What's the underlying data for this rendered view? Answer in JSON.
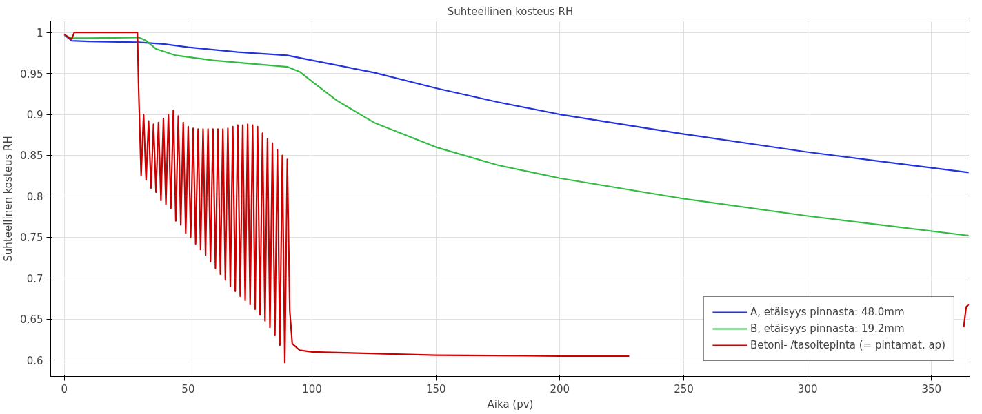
{
  "chart_data": {
    "type": "line",
    "title": "Suhteellinen kosteus RH",
    "xlabel": "Aika (pv)",
    "ylabel": "Suhteellinen kosteus RH",
    "xlim": [
      -5.5,
      365.5
    ],
    "ylim": [
      0.58,
      1.014
    ],
    "xticks": [
      0,
      50,
      100,
      150,
      200,
      250,
      300,
      350
    ],
    "yticks": [
      0.6,
      0.65,
      0.7,
      0.75,
      0.8,
      0.85,
      0.9,
      0.95,
      1
    ],
    "grid": true,
    "legend": "bottom right",
    "marker": "none",
    "line_style": "solid",
    "series": [
      {
        "name": "A, etäisyys pinnasta: 48.0mm",
        "color": "#2233dd",
        "x": [
          0,
          3,
          10,
          30,
          40,
          50,
          70,
          90,
          100,
          125,
          150,
          175,
          200,
          250,
          300,
          365
        ],
        "values": [
          0.997,
          0.99,
          0.989,
          0.988,
          0.986,
          0.982,
          0.976,
          0.972,
          0.966,
          0.951,
          0.932,
          0.915,
          0.9,
          0.876,
          0.854,
          0.829
        ]
      },
      {
        "name": "B, etäisyys pinnasta: 19.2mm",
        "color": "#33bb44",
        "x": [
          0,
          3,
          10,
          30,
          33,
          37,
          45,
          60,
          75,
          90,
          95,
          100,
          110,
          125,
          150,
          175,
          200,
          250,
          300,
          365
        ],
        "values": [
          0.997,
          0.993,
          0.993,
          0.994,
          0.99,
          0.98,
          0.972,
          0.966,
          0.962,
          0.958,
          0.952,
          0.94,
          0.917,
          0.89,
          0.86,
          0.838,
          0.822,
          0.797,
          0.776,
          0.752
        ]
      },
      {
        "name": "Betoni- /tasoitepinta (= pintamat. ap)",
        "color": "#cc0000",
        "x": [
          0,
          2,
          3,
          4,
          29.5,
          30,
          31,
          32,
          33,
          34,
          35,
          36,
          37,
          38,
          39,
          40,
          41,
          42,
          43,
          44,
          45,
          46,
          47,
          48,
          49,
          50,
          51,
          52,
          53,
          54,
          55,
          56,
          57,
          58,
          59,
          60,
          61,
          62,
          63,
          64,
          65,
          66,
          67,
          68,
          69,
          70,
          71,
          72,
          73,
          74,
          75,
          76,
          77,
          78,
          79,
          80,
          81,
          82,
          83,
          84,
          85,
          86,
          87,
          88,
          89,
          90,
          91,
          92,
          95,
          100,
          150,
          200,
          228,
          300,
          363,
          364,
          365
        ],
        "values": [
          0.998,
          0.993,
          0.992,
          1.0,
          1.0,
          0.93,
          0.825,
          0.9,
          0.82,
          0.892,
          0.81,
          0.888,
          0.805,
          0.89,
          0.795,
          0.895,
          0.79,
          0.9,
          0.785,
          0.905,
          0.77,
          0.898,
          0.765,
          0.89,
          0.755,
          0.885,
          0.75,
          0.883,
          0.742,
          0.882,
          0.735,
          0.882,
          0.728,
          0.882,
          0.72,
          0.882,
          0.712,
          0.882,
          0.705,
          0.882,
          0.698,
          0.883,
          0.69,
          0.885,
          0.684,
          0.887,
          0.678,
          0.887,
          0.673,
          0.888,
          0.668,
          0.887,
          0.662,
          0.885,
          0.655,
          0.877,
          0.648,
          0.87,
          0.64,
          0.865,
          0.63,
          0.857,
          0.618,
          0.85,
          0.597,
          0.845,
          0.66,
          0.62,
          0.612,
          0.61,
          0.606,
          0.605,
          0.605,
          null,
          0.64,
          0.665,
          0.668
        ]
      }
    ]
  }
}
